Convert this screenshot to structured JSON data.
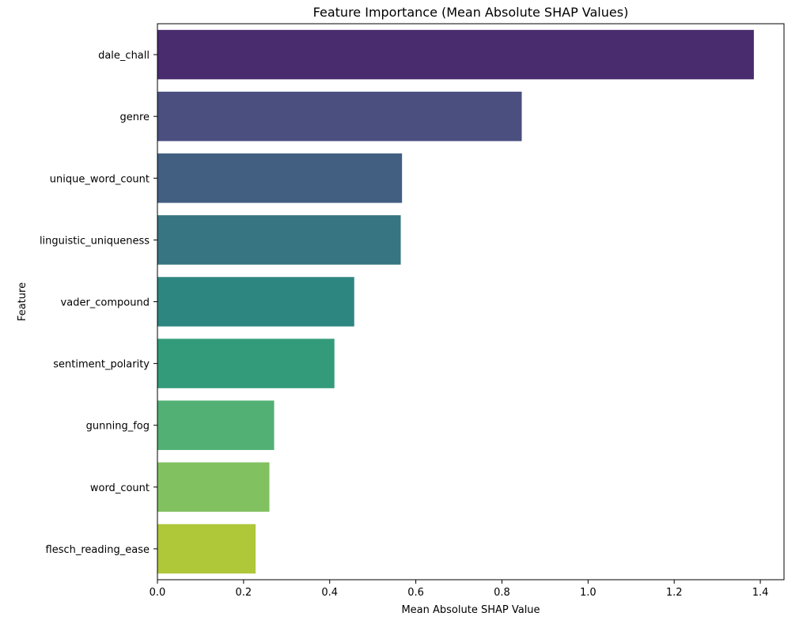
{
  "chart_data": {
    "type": "bar",
    "orientation": "horizontal",
    "title": "Feature Importance (Mean Absolute SHAP Values)",
    "xlabel": "Mean Absolute SHAP Value",
    "ylabel": "Feature",
    "categories": [
      "dale_chall",
      "genre",
      "unique_word_count",
      "linguistic_uniqueness",
      "vader_compound",
      "sentiment_polarity",
      "gunning_fog",
      "word_count",
      "flesch_reading_ease"
    ],
    "values": [
      1.385,
      0.846,
      0.568,
      0.565,
      0.457,
      0.411,
      0.271,
      0.26,
      0.228
    ],
    "colors": [
      "#482c6d",
      "#4a4f7f",
      "#425f82",
      "#377582",
      "#2e8681",
      "#349b7a",
      "#52b074",
      "#82c160",
      "#aec83a"
    ],
    "xlim": [
      0,
      1.455
    ],
    "xticks": [
      "0.0",
      "0.2",
      "0.4",
      "0.6",
      "0.8",
      "1.0",
      "1.2",
      "1.4"
    ],
    "grid": false,
    "legend": "none"
  }
}
